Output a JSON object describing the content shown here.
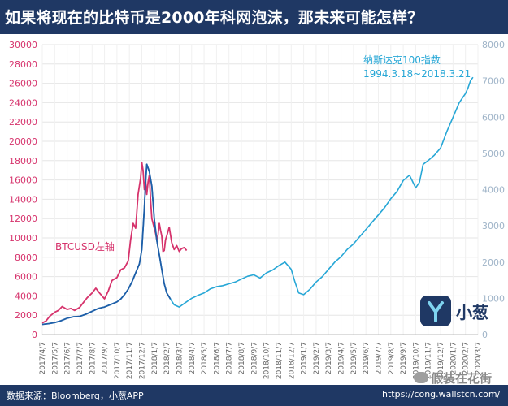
{
  "title": "如果将现在的比特币是2000年科网泡沫，那未来可能怎样？",
  "footer": {
    "source": "数据来源：Bloomberg，小葱APP",
    "url": "https://cong.wallstcn.com/"
  },
  "logo_text": "小葱",
  "watermark": "假装在花街",
  "colors": {
    "header": "#1f3864",
    "btc": "#d6336c",
    "btc_dark": "#1f5ea8",
    "nasdaq": "#27a7d6",
    "left_axis": "#d6336c",
    "right_axis": "#9fb4c8"
  },
  "chart_data": {
    "type": "line",
    "annotations": {
      "btc": "BTCUSD左轴",
      "nasdaq_line1": "纳斯达克100指数",
      "nasdaq_line2": "1994.3.18~2018.3.21"
    },
    "x_ticks": [
      "2017/4/7",
      "2017/5/7",
      "2017/6/7",
      "2017/7/7",
      "2017/8/7",
      "2017/9/7",
      "2017/10/7",
      "2017/11/7",
      "2017/12/7",
      "2018/1/7",
      "2018/2/7",
      "2018/3/7",
      "2018/4/7",
      "2018/5/7",
      "2018/6/7",
      "2018/7/7",
      "2018/8/7",
      "2018/9/7",
      "2018/10/7",
      "2018/11/7",
      "2018/12/7",
      "2019/1/7",
      "2019/2/7",
      "2019/3/7",
      "2019/4/7",
      "2019/5/7",
      "2019/6/7",
      "2019/7/7",
      "2019/8/7",
      "2019/9/7",
      "2019/10/7",
      "2019/11/7",
      "2019/12/7",
      "2020/1/7",
      "2020/2/7",
      "2020/3/7"
    ],
    "y_left": {
      "min": 0,
      "max": 30000,
      "ticks": [
        0,
        2000,
        4000,
        6000,
        8000,
        10000,
        12000,
        14000,
        16000,
        18000,
        20000,
        22000,
        24000,
        26000,
        28000,
        30000
      ]
    },
    "y_right": {
      "min": 0,
      "max": 8000,
      "ticks": [
        0,
        1000,
        2000,
        3000,
        4000,
        5000,
        6000,
        7000,
        8000
      ]
    },
    "grid": true,
    "series": [
      {
        "name": "BTCUSD左轴",
        "axis": "left",
        "x": [
          0,
          0.3,
          0.6,
          1.0,
          1.3,
          1.6,
          2.0,
          2.3,
          2.6,
          3.0,
          3.3,
          3.6,
          4.0,
          4.3,
          4.6,
          5.0,
          5.3,
          5.6,
          6.0,
          6.3,
          6.6,
          6.9,
          7.1,
          7.3,
          7.5,
          7.7,
          7.9,
          8.0,
          8.1,
          8.2,
          8.3,
          8.4,
          8.5,
          8.6,
          8.7,
          8.8,
          8.9,
          9.0,
          9.1,
          9.2,
          9.3,
          9.4,
          9.5,
          9.6,
          9.7,
          9.8,
          9.9,
          10.0,
          10.2,
          10.4,
          10.6,
          10.8,
          11.0,
          11.2,
          11.4,
          11.6
        ],
        "values": [
          1200,
          1400,
          1900,
          2300,
          2500,
          2900,
          2600,
          2700,
          2500,
          2800,
          3300,
          3800,
          4300,
          4800,
          4300,
          3700,
          4500,
          5600,
          5900,
          6700,
          6900,
          7600,
          9800,
          11500,
          11000,
          14500,
          16200,
          17800,
          17000,
          15000,
          16000,
          14500,
          15800,
          16500,
          14000,
          12000,
          11500,
          11000,
          10500,
          9800,
          10300,
          11500,
          10800,
          10200,
          8600,
          8700,
          9800,
          10200,
          11100,
          9500,
          8800,
          9200,
          8600,
          8900,
          9000,
          8700
        ]
      },
      {
        "name": "纳斯达克100指数",
        "axis": "right",
        "x": [
          0,
          0.5,
          1,
          1.5,
          2,
          2.5,
          3,
          3.5,
          4,
          4.5,
          5,
          5.5,
          6,
          6.3,
          6.6,
          6.9,
          7.2,
          7.5,
          7.8,
          8.0,
          8.1,
          8.2,
          8.3,
          8.4,
          8.6,
          8.8,
          9.0,
          9.2,
          9.4,
          9.6,
          9.8,
          10,
          10.3,
          10.6,
          11,
          11.5,
          12,
          12.5,
          13,
          13.5,
          14,
          14.5,
          15,
          15.5,
          16,
          16.5,
          17,
          17.5,
          18,
          18.5,
          19,
          19.5,
          20,
          20.3,
          20.6,
          21,
          21.5,
          22,
          22.5,
          23,
          23.5,
          24,
          24.5,
          25,
          25.5,
          26,
          26.5,
          27,
          27.5,
          28,
          28.5,
          29,
          29.5,
          30,
          30.3,
          30.6,
          31,
          31.5,
          32,
          32.5,
          33,
          33.5,
          34,
          34.2,
          34.4,
          34.6
        ],
        "values": [
          280,
          300,
          330,
          380,
          450,
          490,
          500,
          560,
          640,
          720,
          760,
          830,
          900,
          980,
          1100,
          1250,
          1450,
          1700,
          1950,
          2350,
          2900,
          3500,
          4200,
          4700,
          4500,
          4100,
          3200,
          2600,
          2200,
          1800,
          1400,
          1150,
          980,
          820,
          760,
          880,
          1000,
          1080,
          1150,
          1260,
          1320,
          1350,
          1400,
          1450,
          1530,
          1610,
          1650,
          1560,
          1700,
          1780,
          1900,
          2000,
          1800,
          1450,
          1150,
          1100,
          1250,
          1450,
          1600,
          1800,
          2000,
          2150,
          2350,
          2500,
          2700,
          2900,
          3100,
          3300,
          3500,
          3750,
          3950,
          4250,
          4400,
          4050,
          4200,
          4700,
          4800,
          4950,
          5150,
          5600,
          6000,
          6400,
          6650,
          6800,
          7000,
          7100
        ]
      }
    ]
  }
}
